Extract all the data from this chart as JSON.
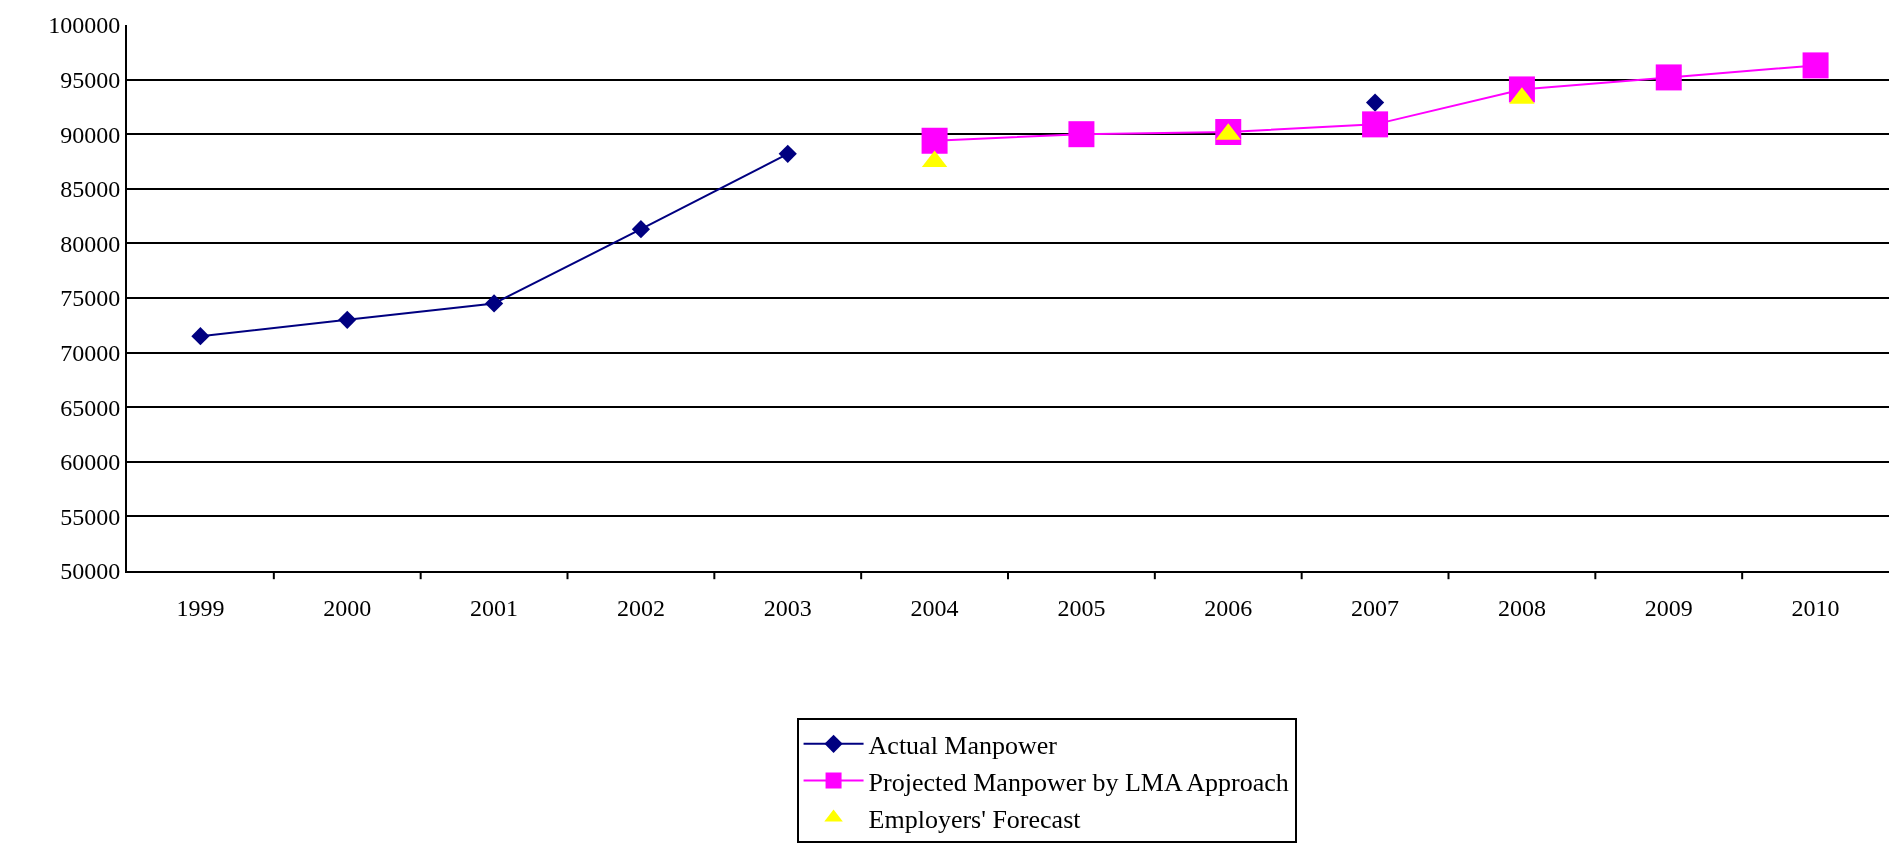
{
  "chart_data": {
    "type": "line",
    "categories": [
      "1999",
      "2000",
      "2001",
      "2002",
      "2003",
      "2004",
      "2005",
      "2006",
      "2007",
      "2008",
      "2009",
      "2010"
    ],
    "series": [
      {
        "name": "Actual Manpower",
        "color": "#000080",
        "marker": "diamond",
        "values": [
          71500,
          73000,
          74500,
          81300,
          88200,
          null,
          null,
          null,
          92900,
          null,
          null,
          null
        ]
      },
      {
        "name": "Projected Manpower by LMA Approach",
        "color": "#ff00ff",
        "marker": "square",
        "values": [
          null,
          null,
          null,
          null,
          null,
          89400,
          90000,
          90200,
          90900,
          94100,
          95200,
          96300
        ]
      },
      {
        "name": "Employers' Forecast",
        "type": "scatter",
        "color": "#ffff00",
        "marker": "triangle",
        "values": [
          null,
          null,
          null,
          null,
          null,
          87500,
          null,
          90000,
          null,
          93300,
          null,
          null
        ]
      }
    ],
    "ylim": [
      50000,
      100000
    ],
    "yticks": [
      50000,
      55000,
      60000,
      65000,
      70000,
      75000,
      80000,
      85000,
      90000,
      95000,
      100000
    ],
    "grid": "y",
    "legend": "bottom",
    "line_style": "solid"
  }
}
